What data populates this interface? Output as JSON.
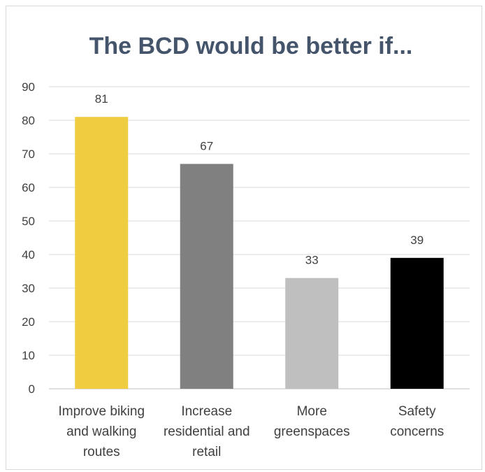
{
  "chart_data": {
    "type": "bar",
    "title": "The BCD would be better if...",
    "categories": [
      "Improve biking and walking routes",
      "Increase residential and retail",
      "More greenspaces",
      "Safety concerns"
    ],
    "category_lines": [
      [
        "Improve biking",
        "and walking",
        "routes"
      ],
      [
        "Increase",
        "residential and",
        "retail"
      ],
      [
        "More",
        "greenspaces"
      ],
      [
        "Safety",
        "concerns"
      ]
    ],
    "values": [
      81,
      67,
      33,
      39
    ],
    "colors": [
      "#f0cc40",
      "#808080",
      "#bfbfbf",
      "#000000"
    ],
    "yticks": [
      "0",
      "10",
      "20",
      "30",
      "40",
      "50",
      "60",
      "70",
      "80",
      "90"
    ],
    "ylim": [
      0,
      90
    ],
    "grid": true,
    "xlabel": "",
    "ylabel": ""
  }
}
